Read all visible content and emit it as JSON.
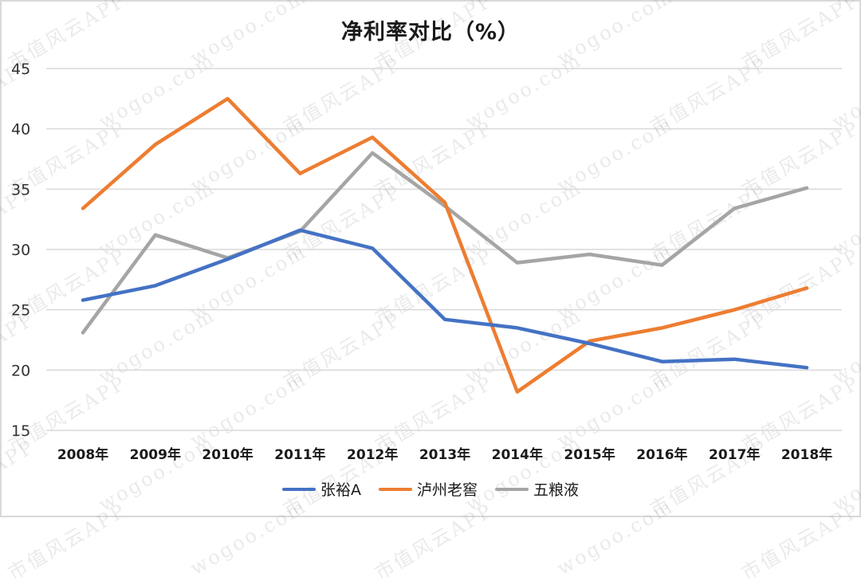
{
  "chart_data": {
    "type": "line",
    "title": "净利率对比（%）",
    "xlabel": "",
    "ylabel": "",
    "categories": [
      "2008年",
      "2009年",
      "2010年",
      "2011年",
      "2012年",
      "2013年",
      "2014年",
      "2015年",
      "2016年",
      "2017年",
      "2018年"
    ],
    "series": [
      {
        "name": "张裕A",
        "color": "#4472c4",
        "values": [
          25.8,
          27.0,
          29.2,
          31.6,
          30.1,
          24.2,
          23.5,
          22.2,
          20.7,
          20.9,
          20.2
        ]
      },
      {
        "name": "泸州老窖",
        "color": "#ed7d31",
        "values": [
          33.4,
          38.7,
          42.5,
          36.3,
          39.3,
          33.9,
          18.2,
          22.4,
          23.5,
          25.0,
          26.8
        ]
      },
      {
        "name": "五粮液",
        "color": "#a5a5a5",
        "values": [
          23.1,
          31.2,
          29.3,
          31.5,
          38.0,
          33.6,
          28.9,
          29.6,
          28.7,
          33.4,
          35.1
        ]
      }
    ],
    "ylim": [
      15,
      45
    ],
    "yticks": [
      15,
      20,
      25,
      30,
      35,
      40,
      45
    ],
    "grid": true,
    "legend_position": "bottom"
  },
  "watermark": {
    "texts": [
      "市值风云APP",
      "wogoo.com"
    ]
  }
}
